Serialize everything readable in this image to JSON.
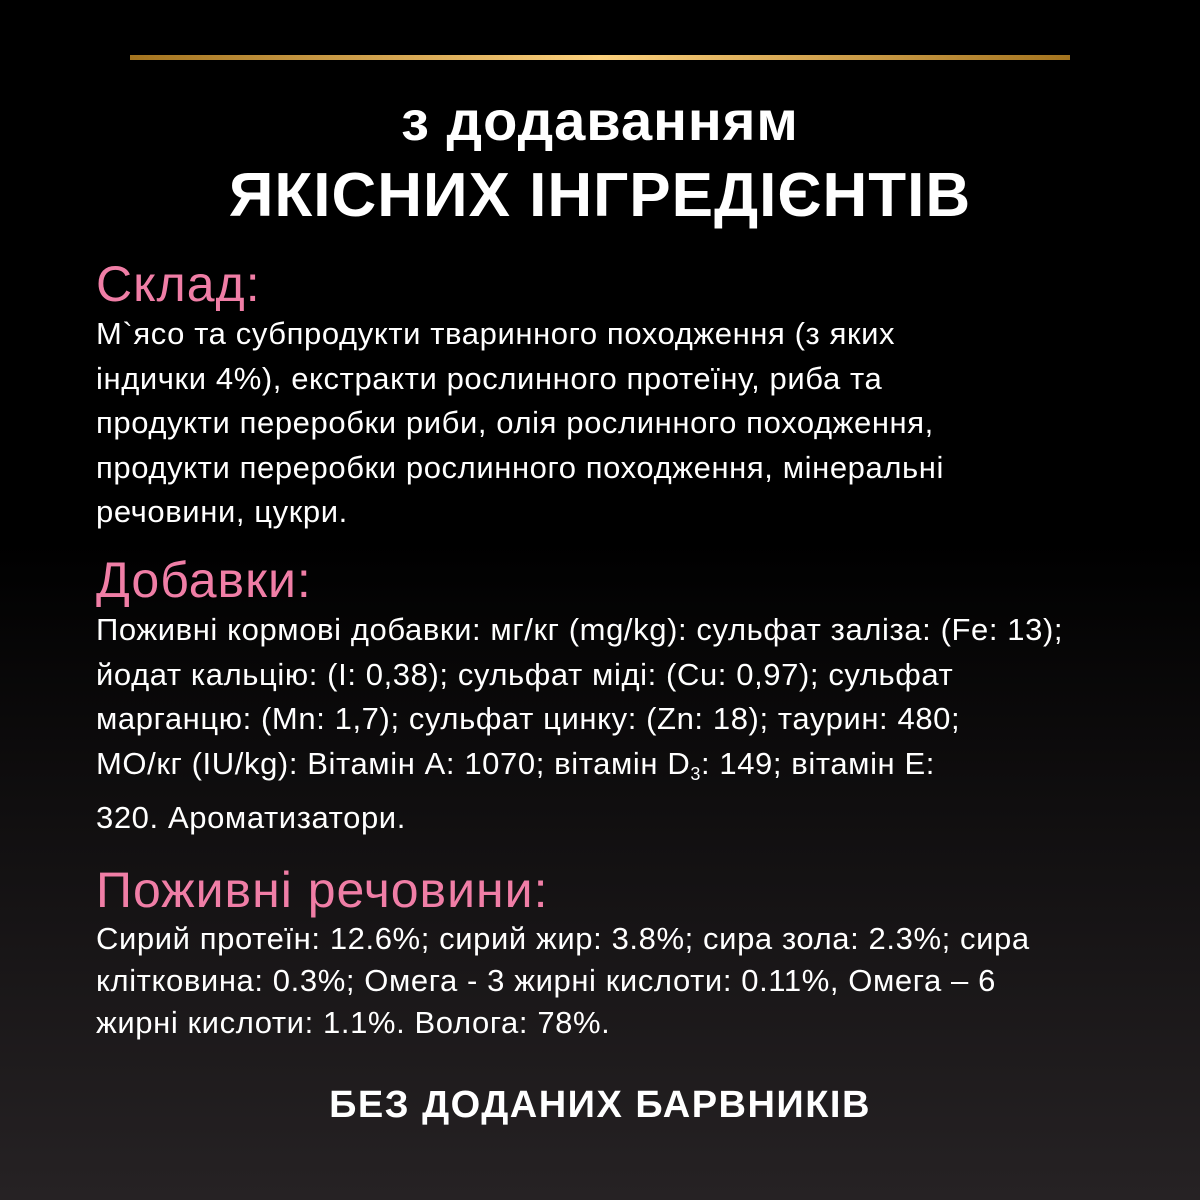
{
  "colors": {
    "background": "#000000",
    "accent_pink": "#f07ea6",
    "gold": "#fcd17d",
    "text": "#ffffff"
  },
  "title": {
    "line1": "з додаванням",
    "line2": "ЯКІСНИХ ІНГРЕДІЄНТІВ"
  },
  "composition": {
    "heading": "Склад:",
    "lines": [
      "М`ясо та субпродукти тваринного походження (з яких",
      "індички 4%), екстракти рослинного протеїну, риба та",
      "продукти переробки риби, олія рослинного походження,",
      "продукти переробки рослинного походження, мінеральні",
      "речовини, цукри."
    ]
  },
  "additives": {
    "heading": "Добавки:",
    "lines": [
      "Поживні кормові добавки: мг/кг (mg/kg): сульфат заліза: (Fe: 13);",
      "йодат кальцію: (I: 0,38); сульфат міді: (Cu: 0,97); сульфат",
      "марганцю: (Mn: 1,7); сульфат цинку: (Zn: 18); таурин: 480;"
    ],
    "vitamin_line": {
      "before": "МО/кг (IU/kg): Вітамін A: 1070; вітамін D",
      "sub": "3",
      "after": ": 149; вітамін E:"
    },
    "last_line": "320. Ароматизатори."
  },
  "nutrients": {
    "heading": "Поживні речовини:",
    "lines": [
      "Сирий протеїн: 12.6%; сирий жир: 3.8%; сира зола: 2.3%; сира",
      "клітковина: 0.3%; Омега - 3 жирні кислоти: 0.11%, Омега – 6",
      "жирні кислоти: 1.1%. Волога: 78%."
    ]
  },
  "footer": "БЕЗ ДОДАНИХ БАРВНИКІВ"
}
